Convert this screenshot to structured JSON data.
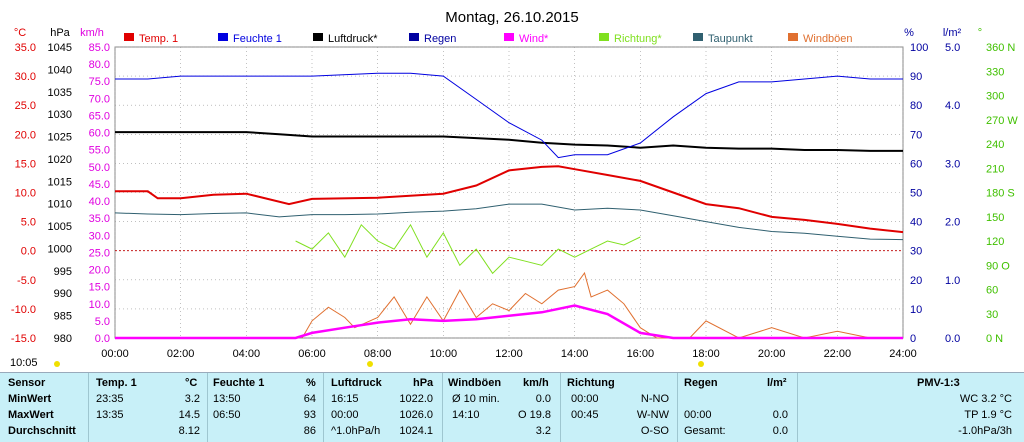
{
  "chart_data": {
    "type": "line",
    "title": "Montag, 26.10.2015",
    "legend": [
      {
        "name": "Temp. 1",
        "color": "#e00000"
      },
      {
        "name": "Feuchte 1",
        "color": "#0000e0"
      },
      {
        "name": "Luftdruck*",
        "color": "#000000"
      },
      {
        "name": "Regen",
        "color": "#0000a0"
      },
      {
        "name": "Wind*",
        "color": "#ff00ff"
      },
      {
        "name": "Richtung*",
        "color": "#80e020"
      },
      {
        "name": "Taupunkt",
        "color": "#306070"
      },
      {
        "name": "Windböen",
        "color": "#e07030"
      }
    ],
    "axes": {
      "temp": {
        "unit": "°C",
        "min": -15,
        "max": 35,
        "ticks": [
          "35.0",
          "30.0",
          "25.0",
          "20.0",
          "15.0",
          "10.0",
          "5.0",
          "0.0",
          "-5.0",
          "-10.0",
          "-15.0"
        ],
        "color": "#e00000"
      },
      "pressure": {
        "unit": "hPa",
        "min": 980,
        "max": 1045,
        "ticks": [
          "1045",
          "1040",
          "1035",
          "1030",
          "1025",
          "1020",
          "1015",
          "1010",
          "1005",
          "1000",
          "995",
          "990",
          "985",
          "980"
        ],
        "color": "#000000"
      },
      "wind": {
        "unit": "km/h",
        "min": 0,
        "max": 85,
        "ticks": [
          "85.0",
          "80.0",
          "75.0",
          "70.0",
          "65.0",
          "60.0",
          "55.0",
          "50.0",
          "45.0",
          "40.0",
          "35.0",
          "30.0",
          "25.0",
          "20.0",
          "15.0",
          "10.0",
          "5.0",
          "0.0"
        ],
        "color": "#e000e0"
      },
      "humidity": {
        "unit": "%",
        "min": 0,
        "max": 100,
        "ticks": [
          "100",
          "90",
          "80",
          "70",
          "60",
          "50",
          "40",
          "30",
          "20",
          "10",
          "0"
        ],
        "color": "#0000a0"
      },
      "rain": {
        "unit": "l/m²",
        "min": 0,
        "max": 5,
        "ticks": [
          "5.0",
          "4.0",
          "3.0",
          "2.0",
          "1.0",
          "0.0"
        ],
        "color": "#0000a0"
      },
      "direction": {
        "unit": "°",
        "min": 0,
        "max": 360,
        "ticks": [
          "360 N",
          "330",
          "300",
          "270 W",
          "240",
          "210",
          "180 S",
          "150",
          "120",
          "90 O",
          "60",
          "30",
          "0 N"
        ],
        "color": "#40c000"
      },
      "x": {
        "ticks": [
          "00:00",
          "02:00",
          "04:00",
          "06:00",
          "08:00",
          "10:00",
          "12:00",
          "14:00",
          "16:00",
          "18:00",
          "20:00",
          "22:00",
          "24:00"
        ],
        "min": 0,
        "max": 24
      }
    },
    "series": [
      {
        "name": "Temp. 1",
        "axis": "temp",
        "color": "#e00000",
        "x": [
          0,
          1,
          1.3,
          2,
          3,
          4,
          5.3,
          6,
          8,
          10,
          11,
          12,
          13,
          13.5,
          14,
          15,
          16,
          17,
          18,
          19,
          20,
          21,
          22,
          23,
          24
        ],
        "y": [
          10.2,
          10.2,
          9,
          9,
          9.6,
          9.8,
          8,
          8.9,
          9.1,
          9.8,
          11.2,
          13.8,
          14.4,
          14.5,
          14,
          13,
          12,
          10,
          8,
          7.3,
          5.8,
          5.3,
          4.6,
          3.8,
          3.2
        ]
      },
      {
        "name": "Feuchte 1",
        "axis": "humidity",
        "color": "#0000e0",
        "x": [
          0,
          1,
          2,
          4,
          6,
          8,
          9,
          10,
          11,
          12,
          13,
          13.5,
          14,
          15,
          16,
          17,
          18,
          19,
          20,
          21,
          22,
          23,
          24
        ],
        "y": [
          89,
          89,
          90,
          90,
          90,
          91,
          91,
          90,
          82,
          74,
          68,
          62,
          63,
          63,
          67,
          76,
          84,
          88,
          88,
          89,
          90,
          89,
          89
        ]
      },
      {
        "name": "Luftdruck*",
        "axis": "pressure",
        "color": "#000000",
        "x": [
          0,
          4,
          5,
          6,
          8,
          10,
          12,
          13,
          14,
          15,
          16,
          17,
          18,
          19,
          20,
          21,
          22,
          23,
          24
        ],
        "y": [
          1026,
          1026,
          1025.5,
          1025,
          1025,
          1025,
          1024.3,
          1023.6,
          1023.2,
          1023,
          1022.5,
          1023,
          1022.5,
          1022.3,
          1022.3,
          1022,
          1022,
          1021.8,
          1021.8
        ]
      },
      {
        "name": "Taupunkt",
        "axis": "temp",
        "color": "#306070",
        "x": [
          0,
          1,
          2,
          3,
          4,
          5,
          6,
          7,
          8,
          9,
          10,
          11,
          12,
          13,
          14,
          15,
          16,
          17,
          18,
          19,
          20,
          21,
          22,
          23,
          24
        ],
        "y": [
          6.5,
          6.3,
          6.2,
          6.4,
          6.5,
          5.8,
          6.2,
          6.2,
          6.3,
          6.6,
          6.8,
          7.2,
          8,
          8,
          7,
          7.3,
          7,
          6,
          5,
          4,
          3.3,
          3,
          2.5,
          2,
          1.9
        ]
      },
      {
        "name": "Wind*",
        "axis": "wind",
        "color": "#ff00ff",
        "x": [
          0,
          5.5,
          6,
          7,
          8,
          9,
          10,
          11,
          12,
          13,
          14,
          15,
          16,
          17,
          24
        ],
        "y": [
          0,
          0,
          1.5,
          3,
          4.5,
          5.5,
          5,
          5.5,
          6.5,
          7.5,
          9.5,
          7,
          1.5,
          0,
          0
        ]
      },
      {
        "name": "Windböen",
        "axis": "wind",
        "color": "#e07030",
        "x": [
          5.7,
          6,
          6.5,
          7,
          7.3,
          8,
          8.5,
          9,
          9.5,
          10,
          10.5,
          11,
          11.5,
          12,
          12.5,
          13,
          13.5,
          14,
          14.3,
          14.5,
          15,
          15.5,
          16,
          16.5,
          17.5,
          18,
          19,
          20,
          21,
          22,
          23,
          24
        ],
        "y": [
          0,
          5,
          9,
          6,
          3,
          6,
          12,
          4,
          12,
          5,
          14,
          6,
          10,
          8,
          13,
          10,
          14,
          15,
          19,
          12,
          14,
          10,
          3,
          0,
          0,
          5,
          0,
          3,
          0,
          2,
          0,
          0
        ]
      },
      {
        "name": "Richtung*",
        "axis": "direction",
        "color": "#80e020",
        "x": [
          5.5,
          6,
          6.5,
          7,
          7.5,
          8,
          8.5,
          9,
          9.5,
          10,
          10.5,
          11,
          11.5,
          12,
          12.5,
          13,
          13.5,
          14,
          14.5,
          15,
          15.5,
          16
        ],
        "y": [
          120,
          110,
          130,
          100,
          140,
          120,
          110,
          140,
          100,
          130,
          90,
          110,
          80,
          100,
          95,
          90,
          110,
          100,
          110,
          120,
          115,
          125
        ]
      }
    ],
    "start_label": "10:05"
  },
  "stats": {
    "headers": {
      "sensor": "Sensor",
      "temp": "Temp. 1",
      "temp_unit": "°C",
      "hum": "Feuchte 1",
      "hum_unit": "%",
      "press": "Luftdruck",
      "press_unit": "hPa",
      "gust": "Windböen",
      "gust_unit": "km/h",
      "dir": "Richtung",
      "rain": "Regen",
      "rain_unit": "l/m²",
      "pmv": "PMV-1:3"
    },
    "rows": [
      {
        "label": "MinWert",
        "t_time": "23:35",
        "t_val": "3.2",
        "h_time": "13:50",
        "h_val": "64",
        "p_time": "16:15",
        "p_val": "1022.0",
        "g_time": "Ø 10 min.",
        "g_val": "0.0",
        "d_time": "00:00",
        "d_val": "N-NO",
        "r_time": "",
        "r_val": "",
        "pmv": "WC 3.2 °C"
      },
      {
        "label": "MaxWert",
        "t_time": "13:35",
        "t_val": "14.5",
        "h_time": "06:50",
        "h_val": "93",
        "p_time": "00:00",
        "p_val": "1026.0",
        "g_time": "14:10",
        "g_val": "O 19.8",
        "d_time": "00:45",
        "d_val": "W-NW",
        "r_time": "00:00",
        "r_val": "0.0",
        "pmv": "TP 1.9 °C"
      },
      {
        "label": "Durchschnitt",
        "t_time": "",
        "t_val": "8.12",
        "h_time": "",
        "h_val": "86",
        "p_time": "^1.0hPa/h",
        "p_val": "1024.1",
        "g_time": "",
        "g_val": "3.2",
        "d_time": "",
        "d_val": "O-SO",
        "r_time": "Gesamt:",
        "r_val": "0.0",
        "pmv": "-1.0hPa/3h"
      }
    ]
  }
}
